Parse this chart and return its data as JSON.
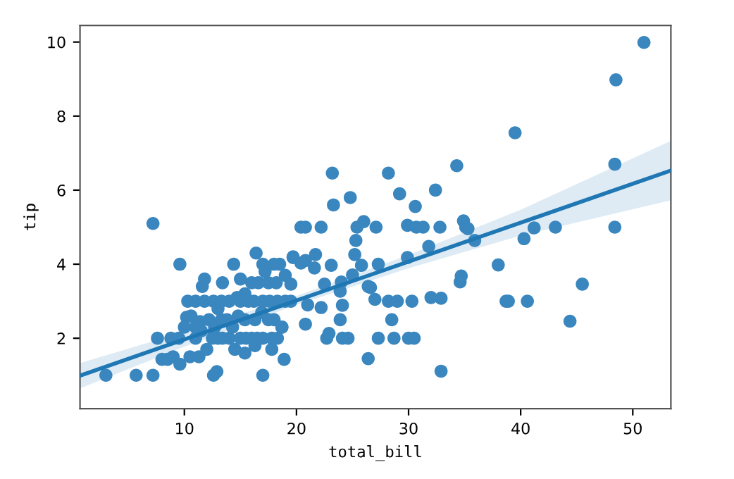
{
  "chart_data": {
    "type": "scatter",
    "xlabel": "total_bill",
    "ylabel": "tip",
    "xlim": [
      0.69,
      53.4
    ],
    "ylim": [
      0.1,
      10.45
    ],
    "xticks": [
      10,
      20,
      30,
      40,
      50
    ],
    "yticks": [
      2,
      4,
      6,
      8,
      10
    ],
    "grid": false,
    "legend": false,
    "series": [
      {
        "color": "#3a86bf",
        "marker": "circle",
        "x": [
          7.2,
          9.6,
          11.6,
          13.4,
          14.4,
          16.4,
          3.0,
          5.7,
          7.2,
          7.6,
          8.8,
          8.0,
          8.5,
          10.2,
          11.4,
          12.6,
          12.9,
          17.0,
          15.4,
          18.9,
          17.8,
          14.7,
          19.7,
          20.4,
          23.2,
          28.2,
          34.3,
          23.3,
          24.8,
          29.2,
          30.6,
          32.4,
          20.8,
          22.2,
          25.4,
          26.0,
          27.1,
          29.9,
          30.7,
          31.3,
          32.8,
          34.9,
          35.1,
          35.3,
          35.9,
          38.0,
          38.7,
          25.3,
          25.2,
          25.8,
          27.3,
          29.9,
          31.8,
          34.7,
          34.6,
          26.6,
          27.0,
          28.2,
          29.0,
          30.3,
          32.0,
          32.9,
          28.5,
          28.7,
          30.0,
          30.5,
          27.3,
          26.4,
          32.9,
          24.1,
          24.6,
          23.9,
          22.9,
          22.7,
          20.8,
          18.7,
          23.1,
          21.7,
          20.4,
          20.8,
          21.6,
          19.7,
          19.5,
          22.5,
          24.0,
          25.0,
          26.4,
          24.1,
          21.0,
          22.2,
          23.9,
          51.0,
          48.5,
          39.5,
          48.4,
          48.4,
          41.2,
          43.1,
          40.3,
          38.9,
          40.6,
          45.5,
          44.4,
          9.0,
          9.6,
          10.5,
          11.0,
          11.3,
          12.5,
          13.0,
          13.4,
          14.0,
          15.0,
          15.5,
          16.0,
          16.5,
          17.0,
          17.8,
          18.3,
          10.0,
          10.6,
          11.0,
          11.5,
          12.2,
          12.7,
          13.3,
          13.8,
          14.3,
          14.8,
          15.4,
          16.3,
          16.9,
          17.5,
          18.0,
          10.3,
          11.0,
          11.8,
          12.6,
          13.3,
          14.0,
          15.0,
          15.7,
          16.2,
          17.0,
          17.6,
          18.3,
          19.0,
          19.5,
          15.4,
          16.0,
          16.6,
          17.5,
          18.2,
          17.2,
          18.5,
          17.0,
          18.0,
          19.0,
          13.0,
          12.0,
          14.5,
          16.3,
          18.7,
          11.8,
          15.0,
          9.5
        ],
        "values": [
          5.1,
          4.0,
          3.4,
          3.5,
          4.0,
          4.3,
          1.0,
          1.0,
          1.0,
          2.0,
          2.0,
          1.43,
          1.43,
          2.57,
          2.45,
          1.0,
          1.1,
          1.0,
          1.6,
          1.43,
          1.7,
          3.1,
          4.2,
          5.0,
          6.46,
          6.46,
          6.66,
          5.6,
          5.8,
          5.9,
          5.56,
          6.0,
          5.0,
          5.0,
          5.0,
          5.15,
          5.0,
          5.05,
          5.0,
          5.0,
          5.0,
          5.17,
          5.0,
          4.96,
          4.64,
          3.98,
          3.0,
          4.64,
          4.26,
          3.97,
          4.0,
          4.18,
          4.48,
          3.68,
          3.52,
          3.37,
          3.05,
          3.0,
          3.0,
          3.0,
          3.1,
          3.08,
          2.5,
          2.0,
          2.0,
          2.0,
          2.0,
          1.45,
          1.11,
          2.0,
          2.0,
          2.5,
          2.13,
          2.0,
          2.38,
          2.3,
          3.97,
          4.26,
          4.03,
          4.1,
          3.9,
          4.18,
          3.46,
          3.46,
          3.52,
          3.71,
          3.4,
          2.89,
          2.9,
          2.83,
          3.27,
          9.99,
          8.98,
          7.55,
          6.7,
          5.0,
          4.98,
          5.0,
          4.69,
          3.0,
          3.0,
          3.46,
          2.46,
          1.5,
          1.3,
          1.5,
          2.0,
          1.5,
          2.0,
          2.0,
          2.0,
          2.0,
          2.0,
          2.0,
          2.0,
          2.0,
          2.0,
          2.0,
          2.0,
          2.3,
          2.6,
          2.3,
          2.2,
          2.5,
          2.3,
          2.5,
          2.5,
          2.3,
          2.6,
          2.5,
          2.5,
          2.7,
          2.5,
          2.5,
          3.0,
          3.0,
          3.0,
          3.0,
          3.0,
          3.0,
          3.0,
          3.0,
          3.0,
          3.0,
          3.0,
          3.0,
          3.0,
          3.0,
          3.2,
          3.5,
          3.5,
          3.5,
          3.5,
          3.8,
          4.0,
          4.0,
          4.0,
          3.7,
          2.8,
          1.7,
          1.7,
          1.8,
          2.3,
          3.6,
          3.6,
          2.0
        ]
      },
      {
        "type": "line",
        "color": "#1f77b4",
        "marker": "none",
        "x": [
          0.69,
          10,
          20,
          30,
          40,
          53.4
        ],
        "values": [
          0.99,
          1.97,
          3.02,
          4.07,
          5.12,
          6.53
        ],
        "lower": [
          0.65,
          1.77,
          2.9,
          3.89,
          4.77,
          5.73
        ],
        "upper": [
          1.33,
          2.17,
          3.14,
          4.25,
          5.47,
          7.33
        ]
      }
    ]
  }
}
